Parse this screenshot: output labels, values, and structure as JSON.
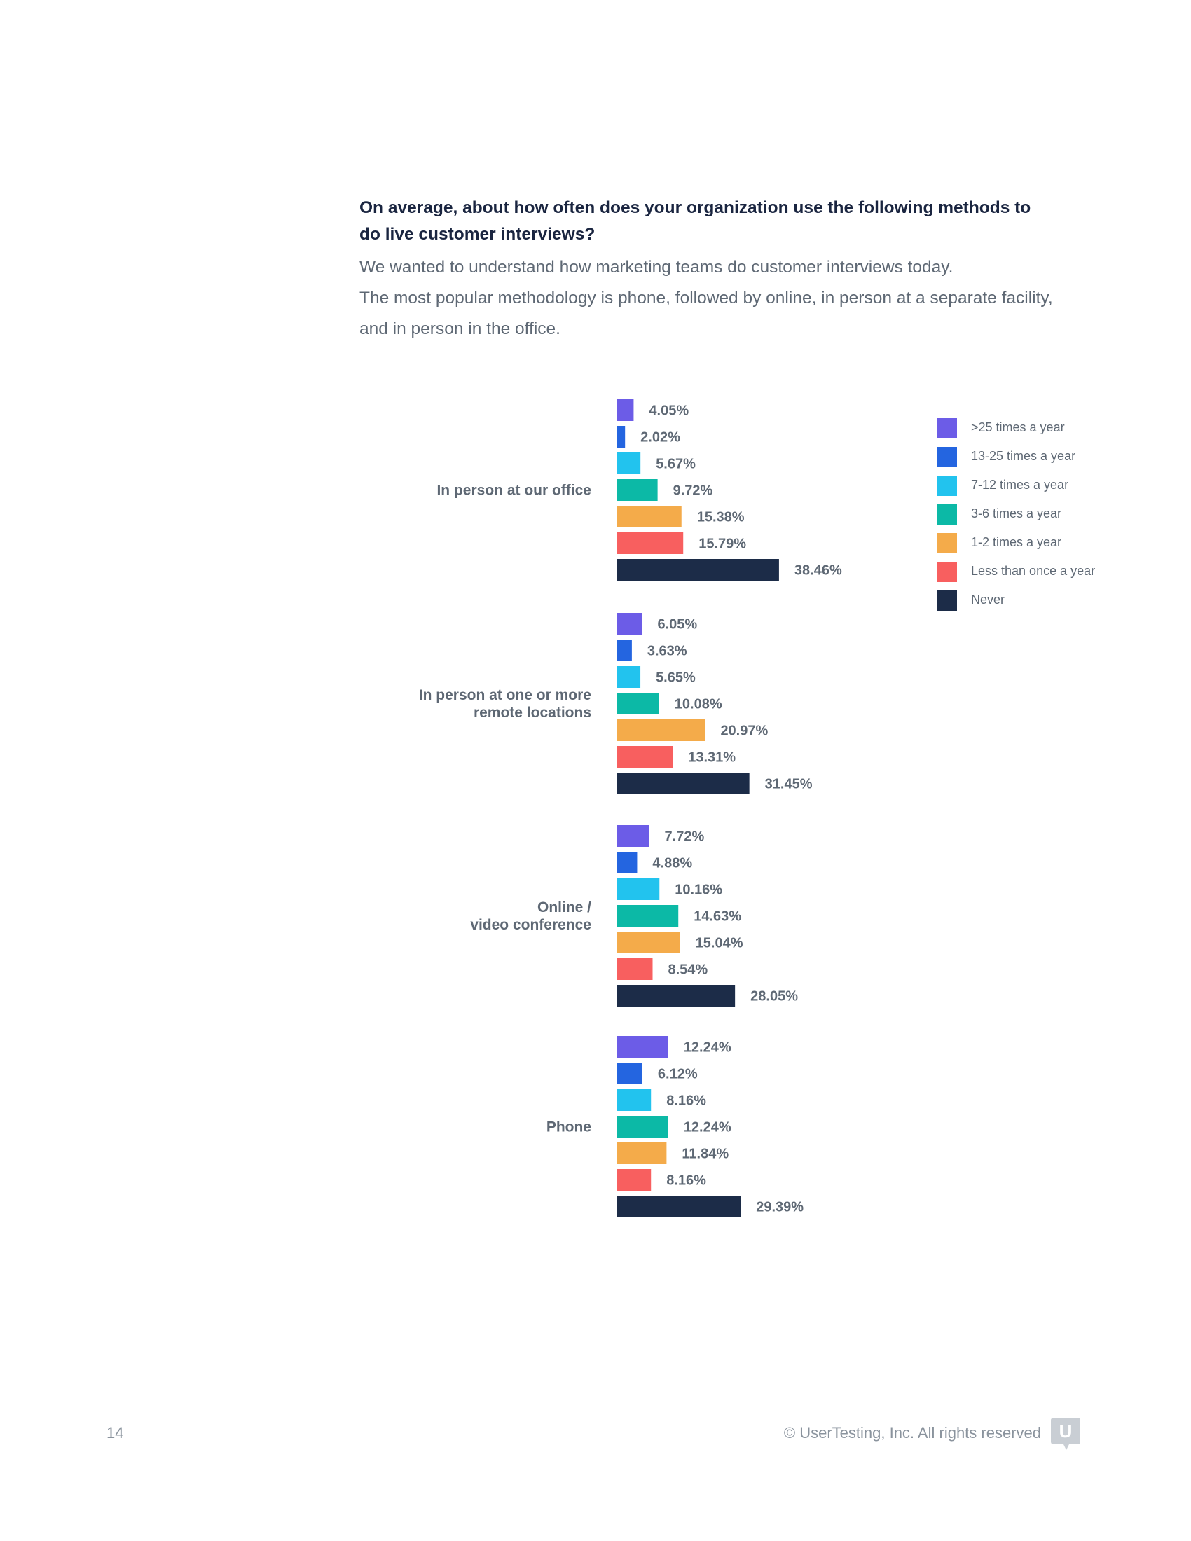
{
  "page": {
    "title": "On average, about how often does your organization use the following methods to do live customer interviews?",
    "description": [
      "We wanted to understand how marketing teams do customer interviews today.",
      "The most popular methodology is phone, followed by online, in person at a separate facility, and in person in the office."
    ],
    "page_number": "14",
    "copyright": "© UserTesting, Inc. All rights reserved",
    "logo_letter": "U",
    "logo_icon": "usertesting-logo-icon"
  },
  "chart_data": {
    "type": "bar",
    "orientation": "horizontal",
    "grid": false,
    "legend_position": "right",
    "value_suffix": "%",
    "xlim": [
      0,
      40
    ],
    "categories": [
      [
        "In person at our office"
      ],
      [
        "In person at one or more",
        "remote locations"
      ],
      [
        "Online /",
        "video conference"
      ],
      [
        "Phone"
      ]
    ],
    "series": [
      {
        "name": ">25 times a year",
        "color": "#6c5ce7",
        "values": [
          4.05,
          6.05,
          7.72,
          12.24
        ]
      },
      {
        "name": "13-25 times a year",
        "color": "#2465e0",
        "values": [
          2.02,
          3.63,
          4.88,
          6.12
        ]
      },
      {
        "name": "7-12 times a year",
        "color": "#22c3ee",
        "values": [
          5.67,
          5.65,
          10.16,
          8.16
        ]
      },
      {
        "name": "3-6 times a year",
        "color": "#0cb9a6",
        "values": [
          9.72,
          10.08,
          14.63,
          12.24
        ]
      },
      {
        "name": "1-2 times a year",
        "color": "#f4ab4a",
        "values": [
          15.38,
          20.97,
          15.04,
          11.84
        ]
      },
      {
        "name": "Less than once a year",
        "color": "#f85f5f",
        "values": [
          15.79,
          13.31,
          8.54,
          8.16
        ]
      },
      {
        "name": "Never",
        "color": "#1c2c48",
        "values": [
          38.46,
          31.45,
          28.05,
          29.39
        ]
      }
    ]
  }
}
